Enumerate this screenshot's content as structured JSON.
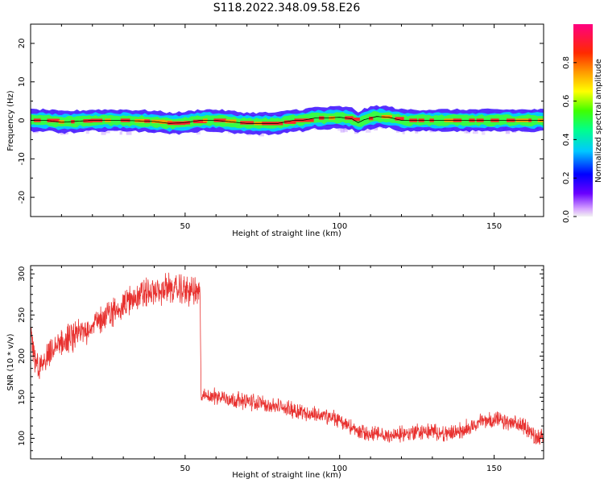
{
  "title": "S118.2022.348.09.58.E26",
  "chart_data": [
    {
      "type": "heatmap",
      "title": "S118.2022.348.09.58.E26",
      "xlabel": "Height of straight line (km)",
      "ylabel": "Frequency (Hz)",
      "xlim": [
        0,
        166
      ],
      "ylim": [
        -25,
        25
      ],
      "x_ticks": [
        "50",
        "100",
        "150"
      ],
      "y_ticks": [
        "20",
        "10",
        "0",
        "-10",
        "-20"
      ],
      "colorbar": {
        "label": "Normalized spectral amplitude",
        "range": [
          0.0,
          1.0
        ],
        "ticks": [
          "0.0",
          "0.2",
          "0.4",
          "0.6",
          "0.8"
        ],
        "colormap": "gist_rainbow_r"
      },
      "ridge": {
        "x": [
          0,
          5,
          10,
          20,
          30,
          40,
          45,
          50,
          55,
          60,
          65,
          70,
          75,
          80,
          85,
          88,
          92,
          96,
          100,
          104,
          106,
          108,
          112,
          116,
          120,
          130,
          140,
          150,
          160,
          166
        ],
        "freq": [
          0,
          0,
          -0.5,
          0,
          0,
          -0.3,
          -0.8,
          -0.6,
          0,
          0,
          -0.4,
          -0.8,
          -0.8,
          -0.8,
          0,
          0,
          0.6,
          0.6,
          0.8,
          0.4,
          -0.6,
          0.2,
          1.0,
          0.8,
          0,
          0,
          0,
          0,
          0,
          0
        ]
      },
      "colors": {
        "threshold_line": "#888888",
        "ridge_line": "#000000"
      }
    },
    {
      "type": "line",
      "xlabel": "Height of straight line (km)",
      "ylabel": "SNR (10 * v/v)",
      "xlim": [
        0,
        166
      ],
      "ylim": [
        75,
        310
      ],
      "x_ticks": [
        "50",
        "100",
        "150"
      ],
      "y_ticks": [
        "300",
        "250",
        "200",
        "150",
        "100"
      ],
      "color": "#e8312f",
      "trend": {
        "x": [
          0,
          1,
          3,
          5,
          8,
          12,
          15,
          20,
          25,
          30,
          35,
          40,
          45,
          50,
          54,
          54.8,
          55.2,
          58,
          62,
          66,
          70,
          75,
          80,
          85,
          90,
          95,
          100,
          103,
          106,
          110,
          115,
          120,
          125,
          130,
          135,
          140,
          145,
          150,
          155,
          160,
          163,
          166
        ],
        "y": [
          222,
          200,
          185,
          195,
          210,
          220,
          225,
          238,
          250,
          262,
          275,
          278,
          282,
          280,
          278,
          275,
          150,
          152,
          150,
          147,
          145,
          142,
          138,
          135,
          130,
          127,
          122,
          115,
          108,
          105,
          103,
          105,
          108,
          108,
          105,
          110,
          120,
          123,
          118,
          115,
          103,
          100
        ]
      },
      "noise_amplitude": [
        18,
        10
      ]
    }
  ]
}
